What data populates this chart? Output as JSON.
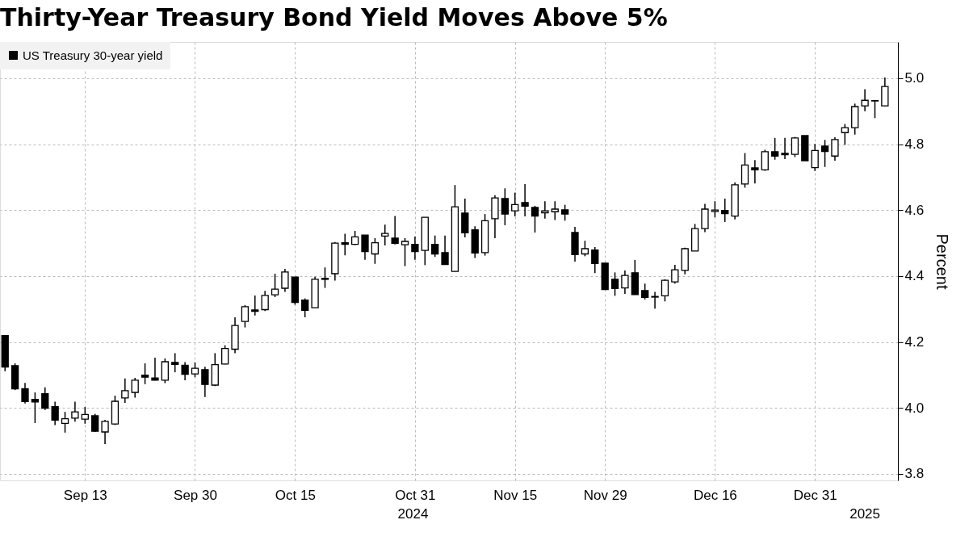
{
  "chart_data": {
    "type": "candlestick",
    "title": "Thirty-Year Treasury Bond Yield Moves Above 5%",
    "ylabel": "Percent",
    "categories": [
      null,
      null,
      null,
      null,
      null,
      null,
      null,
      null,
      "Sep 13",
      null,
      null,
      null,
      null,
      null,
      null,
      null,
      null,
      null,
      null,
      "Sep 30",
      null,
      null,
      null,
      null,
      null,
      null,
      null,
      null,
      null,
      "Oct 15",
      null,
      null,
      null,
      null,
      null,
      null,
      null,
      null,
      null,
      null,
      null,
      "Oct 31",
      null,
      null,
      null,
      null,
      null,
      null,
      null,
      null,
      null,
      "Nov 15",
      null,
      null,
      null,
      null,
      null,
      null,
      null,
      null,
      "Nov 29",
      null,
      null,
      null,
      null,
      null,
      null,
      null,
      null,
      null,
      null,
      "Dec 16",
      null,
      null,
      null,
      null,
      null,
      null,
      null,
      null,
      null,
      "Dec 31",
      null,
      null,
      null,
      null,
      null,
      null,
      null
    ],
    "series": [
      {
        "name": "US Treasury 30-year yield",
        "color": "#000000",
        "ohlc": [
          [
            4.219,
            4.22,
            4.111,
            4.124
          ],
          [
            4.128,
            4.135,
            4.054,
            4.058
          ],
          [
            4.058,
            4.076,
            4.013,
            4.019
          ],
          [
            4.026,
            4.047,
            3.954,
            4.018
          ],
          [
            4.043,
            4.062,
            3.994,
            3.999
          ],
          [
            4.004,
            4.019,
            3.948,
            3.963
          ],
          [
            3.953,
            3.988,
            3.925,
            3.967
          ],
          [
            3.969,
            4.019,
            3.958,
            3.988
          ],
          [
            3.966,
            4.003,
            3.952,
            3.98
          ],
          [
            3.976,
            3.982,
            3.927,
            3.929
          ],
          [
            3.927,
            3.964,
            3.89,
            3.959
          ],
          [
            3.951,
            4.037,
            3.948,
            4.02
          ],
          [
            4.03,
            4.089,
            4.015,
            4.052
          ],
          [
            4.047,
            4.091,
            4.031,
            4.084
          ],
          [
            4.099,
            4.135,
            4.072,
            4.093
          ],
          [
            4.091,
            4.152,
            4.083,
            4.084
          ],
          [
            4.084,
            4.15,
            4.075,
            4.14
          ],
          [
            4.138,
            4.166,
            4.108,
            4.132
          ],
          [
            4.129,
            4.139,
            4.084,
            4.102
          ],
          [
            4.103,
            4.138,
            4.093,
            4.12
          ],
          [
            4.116,
            4.125,
            4.033,
            4.071
          ],
          [
            4.069,
            4.166,
            4.066,
            4.131
          ],
          [
            4.133,
            4.19,
            4.132,
            4.18
          ],
          [
            4.178,
            4.275,
            4.166,
            4.25
          ],
          [
            4.262,
            4.312,
            4.244,
            4.307
          ],
          [
            4.297,
            4.341,
            4.28,
            4.293
          ],
          [
            4.298,
            4.355,
            4.294,
            4.341
          ],
          [
            4.343,
            4.407,
            4.336,
            4.36
          ],
          [
            4.363,
            4.422,
            4.352,
            4.412
          ],
          [
            4.397,
            4.397,
            4.313,
            4.32
          ],
          [
            4.327,
            4.332,
            4.275,
            4.296
          ],
          [
            4.304,
            4.398,
            4.304,
            4.39
          ],
          [
            4.393,
            4.426,
            4.364,
            4.39
          ],
          [
            4.407,
            4.503,
            4.386,
            4.5
          ],
          [
            4.501,
            4.528,
            4.463,
            4.496
          ],
          [
            4.496,
            4.537,
            4.494,
            4.519
          ],
          [
            4.524,
            4.524,
            4.449,
            4.474
          ],
          [
            4.467,
            4.515,
            4.437,
            4.501
          ],
          [
            4.521,
            4.556,
            4.493,
            4.529
          ],
          [
            4.515,
            4.582,
            4.496,
            4.499
          ],
          [
            4.495,
            4.515,
            4.43,
            4.505
          ],
          [
            4.496,
            4.52,
            4.449,
            4.474
          ],
          [
            4.478,
            4.578,
            4.433,
            4.578
          ],
          [
            4.496,
            4.523,
            4.458,
            4.467
          ],
          [
            4.471,
            4.523,
            4.435,
            4.435
          ],
          [
            4.414,
            4.676,
            4.414,
            4.61
          ],
          [
            4.591,
            4.635,
            4.517,
            4.531
          ],
          [
            4.54,
            4.551,
            4.455,
            4.47
          ],
          [
            4.471,
            4.588,
            4.462,
            4.568
          ],
          [
            4.574,
            4.645,
            4.515,
            4.637
          ],
          [
            4.635,
            4.666,
            4.554,
            4.588
          ],
          [
            4.598,
            4.653,
            4.581,
            4.617
          ],
          [
            4.623,
            4.679,
            4.581,
            4.612
          ],
          [
            4.608,
            4.613,
            4.532,
            4.582
          ],
          [
            4.592,
            4.627,
            4.574,
            4.598
          ],
          [
            4.595,
            4.627,
            4.57,
            4.603
          ],
          [
            4.601,
            4.616,
            4.568,
            4.588
          ],
          [
            4.532,
            4.549,
            4.444,
            4.465
          ],
          [
            4.467,
            4.507,
            4.46,
            4.483
          ],
          [
            4.479,
            4.488,
            4.409,
            4.438
          ],
          [
            4.439,
            4.439,
            4.359,
            4.359
          ],
          [
            4.39,
            4.411,
            4.34,
            4.362
          ],
          [
            4.364,
            4.417,
            4.346,
            4.402
          ],
          [
            4.41,
            4.449,
            4.344,
            4.344
          ],
          [
            4.356,
            4.377,
            4.329,
            4.335
          ],
          [
            4.336,
            4.352,
            4.301,
            4.338
          ],
          [
            4.34,
            4.39,
            4.323,
            4.387
          ],
          [
            4.382,
            4.434,
            4.377,
            4.419
          ],
          [
            4.417,
            4.486,
            4.405,
            4.483
          ],
          [
            4.476,
            4.558,
            4.476,
            4.544
          ],
          [
            4.544,
            4.619,
            4.533,
            4.603
          ],
          [
            4.596,
            4.627,
            4.578,
            4.6
          ],
          [
            4.599,
            4.635,
            4.564,
            4.589
          ],
          [
            4.582,
            4.684,
            4.572,
            4.677
          ],
          [
            4.679,
            4.773,
            4.668,
            4.737
          ],
          [
            4.728,
            4.752,
            4.681,
            4.722
          ],
          [
            4.722,
            4.783,
            4.719,
            4.777
          ],
          [
            4.777,
            4.819,
            4.753,
            4.764
          ],
          [
            4.772,
            4.819,
            4.755,
            4.768
          ],
          [
            4.769,
            4.822,
            4.761,
            4.819
          ],
          [
            4.826,
            4.826,
            4.75,
            4.75
          ],
          [
            4.729,
            4.801,
            4.719,
            4.781
          ],
          [
            4.794,
            4.813,
            4.731,
            4.778
          ],
          [
            4.764,
            4.821,
            4.75,
            4.814
          ],
          [
            4.835,
            4.861,
            4.798,
            4.85
          ],
          [
            4.85,
            4.923,
            4.829,
            4.914
          ],
          [
            4.916,
            4.967,
            4.9,
            4.933
          ],
          [
            4.931,
            4.932,
            4.879,
            4.932
          ],
          [
            4.916,
            5.002,
            4.916,
            4.975
          ]
        ]
      }
    ],
    "ylim": [
      3.78,
      5.11
    ],
    "yticks": [
      {
        "value": 3.8,
        "label": "3.8"
      },
      {
        "value": 4.0,
        "label": "4.0"
      },
      {
        "value": 4.2,
        "label": "4.2"
      },
      {
        "value": 4.4,
        "label": "4.4"
      },
      {
        "value": 4.6,
        "label": "4.6"
      },
      {
        "value": 4.8,
        "label": "4.8"
      },
      {
        "value": 5.0,
        "label": "5.0"
      }
    ],
    "grid": true,
    "legend": "top left",
    "annotations": [
      "2024",
      "2025"
    ]
  }
}
